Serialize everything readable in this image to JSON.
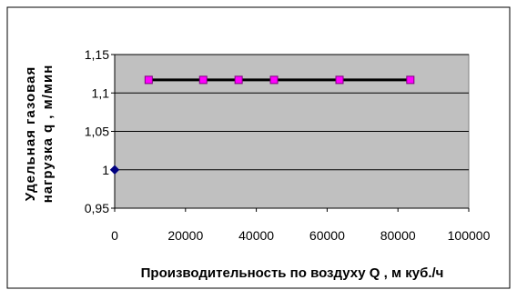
{
  "chart_data": {
    "type": "line",
    "title": "",
    "xlabel": "Производительность по воздуху Q , м куб./ч",
    "ylabel_line1": "Удельная газовая",
    "ylabel_line2": "нагрузка q , м/мин",
    "xlim": [
      0,
      100000
    ],
    "ylim": [
      0.95,
      1.15
    ],
    "x_ticks": [
      0,
      20000,
      40000,
      60000,
      80000,
      100000
    ],
    "x_tick_labels": [
      "0",
      "20000",
      "40000",
      "60000",
      "80000",
      "100000"
    ],
    "y_ticks": [
      0.95,
      1,
      1.05,
      1.1,
      1.15
    ],
    "y_tick_labels": [
      "0,95",
      "1",
      "1,05",
      "1,1",
      "1,15"
    ],
    "grid": true,
    "plot_background": "#c0c0c0",
    "series": [
      {
        "color": "#ff00ff",
        "line_color": "#000000",
        "marker": "square",
        "x": [
          9600,
          25000,
          35000,
          45000,
          63500,
          83500
        ],
        "y": [
          1.117,
          1.117,
          1.117,
          1.117,
          1.117,
          1.117
        ]
      },
      {
        "color": "#000080",
        "marker": "diamond",
        "x": [
          0
        ],
        "y": [
          1.0
        ]
      }
    ]
  }
}
